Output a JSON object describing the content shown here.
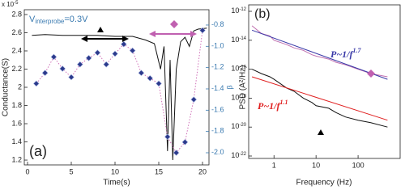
{
  "chart_data": [
    {
      "type": "line",
      "panel_label": "(a)",
      "xlabel": "Time(s)",
      "ylabel": "Conductance(S)",
      "y2label": "β",
      "multiplier": {
        "base": "x 10",
        "exponent": "-5"
      },
      "annotation": {
        "text": "V",
        "subscript": "interprobe",
        "tail": "=0.3V"
      },
      "xlim": [
        -0.37,
        20.74
      ],
      "xticks": [
        0,
        5,
        10,
        15,
        20
      ],
      "ylim": [
        1.147,
        2.853
      ],
      "yticks": [
        1.2,
        1.4,
        1.6,
        1.8,
        2,
        2.2,
        2.4,
        2.6,
        2.8
      ],
      "y2lim": [
        -2.114,
        -0.656
      ],
      "y2ticks": [
        {
          "value": -0.8,
          "label": "-0.8"
        },
        {
          "value": -1.0,
          "label": "-1.0"
        },
        {
          "value": -1.2,
          "label": "-1.2"
        },
        {
          "value": -1.4,
          "label": "-1.4"
        },
        {
          "value": -1.6,
          "label": "-1.6"
        },
        {
          "value": -1.8,
          "label": "-1.8"
        },
        {
          "value": -2.0,
          "label": "-2.0"
        }
      ],
      "y2color": "#3a7ab0",
      "series": [
        {
          "color": "#111111",
          "x": [
            0.5,
            2,
            4,
            6,
            8,
            10,
            12,
            13.5,
            14.5,
            15.2,
            15.6,
            16,
            16.3,
            16.6,
            17,
            17.5,
            18,
            18.5,
            19,
            19.5,
            20.5
          ],
          "values": [
            2.57,
            2.58,
            2.57,
            2.57,
            2.57,
            2.56,
            2.56,
            2.52,
            2.48,
            2.2,
            2.45,
            1.3,
            2.3,
            1.2,
            2.2,
            2.5,
            2.55,
            2.45,
            2.62,
            2.64,
            2.65
          ]
        },
        {
          "color": "#d070b8",
          "dash": "1.5,2",
          "marker": "diamond",
          "marker_color": "#2c3a8c",
          "axis": "y2",
          "x": [
            1,
            2,
            3,
            4,
            5,
            6,
            7,
            8,
            9,
            10,
            11,
            12,
            13,
            14,
            15,
            16,
            17,
            18,
            19,
            20
          ],
          "values": [
            -1.35,
            -1.25,
            -1.1,
            -1.21,
            -1.29,
            -1.17,
            -1.11,
            -1.06,
            -1.17,
            -1.07,
            -0.98,
            -1.04,
            -1.25,
            -1.3,
            -1.35,
            -1.85,
            -2.0,
            -1.9,
            -1.5,
            -0.85
          ]
        }
      ]
    },
    {
      "type": "line",
      "panel_label": "(b)",
      "xlabel": "Frequency (Hz)",
      "ylabel": "PSD (A²/Hz)",
      "xlog": true,
      "ylog": true,
      "xlim": [
        0.25,
        1000
      ],
      "xticks": [
        1,
        10,
        100
      ],
      "ylim": [
        6.8e-23,
        2.8e-12
      ],
      "yticks": [
        {
          "value": 1e-22,
          "label": "10",
          "exponent": "-22"
        },
        {
          "value": 1e-20,
          "label": "10",
          "exponent": "-20"
        },
        {
          "value": 1e-18,
          "label": "10",
          "exponent": "-18"
        },
        {
          "value": 1e-16,
          "label": "10",
          "exponent": "-16"
        },
        {
          "value": 1e-14,
          "label": "10",
          "exponent": "-14"
        },
        {
          "value": 1e-12,
          "label": "10",
          "exponent": "-12"
        }
      ],
      "fit_labels": [
        {
          "text": "P~1/f",
          "exponent": "1.7"
        },
        {
          "text": "P~1/f",
          "exponent": "1.1"
        }
      ],
      "series": [
        {
          "color": "#c070b0",
          "x": [
            0.3,
            0.5,
            0.8,
            1,
            2,
            3,
            5,
            8,
            10,
            20,
            30,
            50,
            100,
            200,
            500
          ],
          "values": [
            1e-13,
            3e-14,
            2e-14,
            1e-14,
            5e-15,
            3e-15,
            2e-15,
            1e-15,
            8e-16,
            5e-16,
            3e-16,
            2e-16,
            1e-16,
            5e-17,
            3e-17
          ]
        },
        {
          "color": "#111111",
          "x": [
            0.3,
            0.5,
            0.8,
            1,
            2,
            3,
            5,
            8,
            10,
            20,
            30,
            50,
            100,
            200,
            500
          ],
          "values": [
            1e-16,
            5e-17,
            3e-17,
            2e-17,
            5e-18,
            3e-18,
            1e-18,
            5e-19,
            3e-19,
            2e-19,
            1e-19,
            5e-20,
            3e-20,
            2e-20,
            1e-20
          ]
        },
        {
          "color": "#3a3aa8",
          "x": [
            0.3,
            500
          ],
          "values": [
            5e-14,
            2e-17
          ]
        },
        {
          "color": "#e02020",
          "x": [
            0.3,
            500
          ],
          "values": [
            3e-17,
            3e-20
          ]
        }
      ]
    }
  ]
}
